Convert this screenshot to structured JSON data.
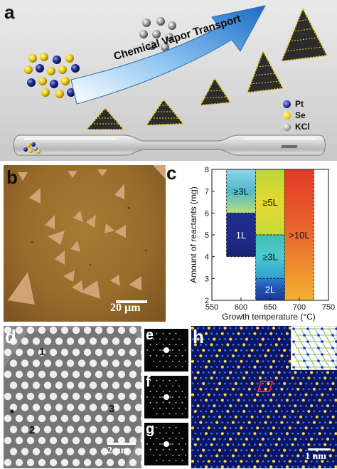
{
  "panels": {
    "a": {
      "label": "a",
      "arrow_text": "Chemical Vapor Transport",
      "legend": [
        {
          "name": "Pt",
          "color": "#22318f"
        },
        {
          "name": "Se",
          "color": "#f2d21a"
        },
        {
          "name": "KCl",
          "color": "#9a9a9a"
        }
      ]
    },
    "b": {
      "label": "b",
      "scale_bar": "20 µm"
    },
    "c": {
      "label": "c"
    },
    "d": {
      "label": "d",
      "region_labels": [
        "1",
        "2",
        "3"
      ],
      "scale_bar": "2 µm"
    },
    "e": {
      "label": "e"
    },
    "f": {
      "label": "f"
    },
    "g": {
      "label": "g"
    },
    "h": {
      "label": "h",
      "scale_bar": "1 nm"
    }
  },
  "chart_data": {
    "type": "phase-diagram",
    "xlabel": "Growth temperature (°C)",
    "ylabel": "Amount of reactants (mg)",
    "xlim": [
      550,
      750
    ],
    "ylim": [
      2,
      8
    ],
    "xticks": [
      "550",
      "600",
      "650",
      "700",
      "750"
    ],
    "yticks": [
      "2",
      "3",
      "4",
      "5",
      "6",
      "7",
      "8"
    ],
    "regions": [
      {
        "x": [
          575,
          625
        ],
        "y": [
          6,
          8
        ],
        "label": "≥3L",
        "color": "#4fb7c8"
      },
      {
        "x": [
          575,
          625
        ],
        "y": [
          4,
          6
        ],
        "label": "1L",
        "color": "#1f2a8c"
      },
      {
        "x": [
          625,
          675
        ],
        "y": [
          5,
          8
        ],
        "label": "≥5L",
        "color": "#c8dc3c"
      },
      {
        "x": [
          625,
          675
        ],
        "y": [
          3,
          5
        ],
        "label": "≥3L",
        "color": "#3fc0b0"
      },
      {
        "x": [
          625,
          675
        ],
        "y": [
          2,
          3
        ],
        "label": "2L",
        "color": "#1f4fb0"
      },
      {
        "x": [
          675,
          725
        ],
        "y": [
          2,
          8
        ],
        "label": ">10L",
        "color": "#e24a2a"
      }
    ],
    "dashed_lines_y": [
      5,
      3
    ],
    "dashed_line_range_x": [
      625,
      675
    ]
  }
}
